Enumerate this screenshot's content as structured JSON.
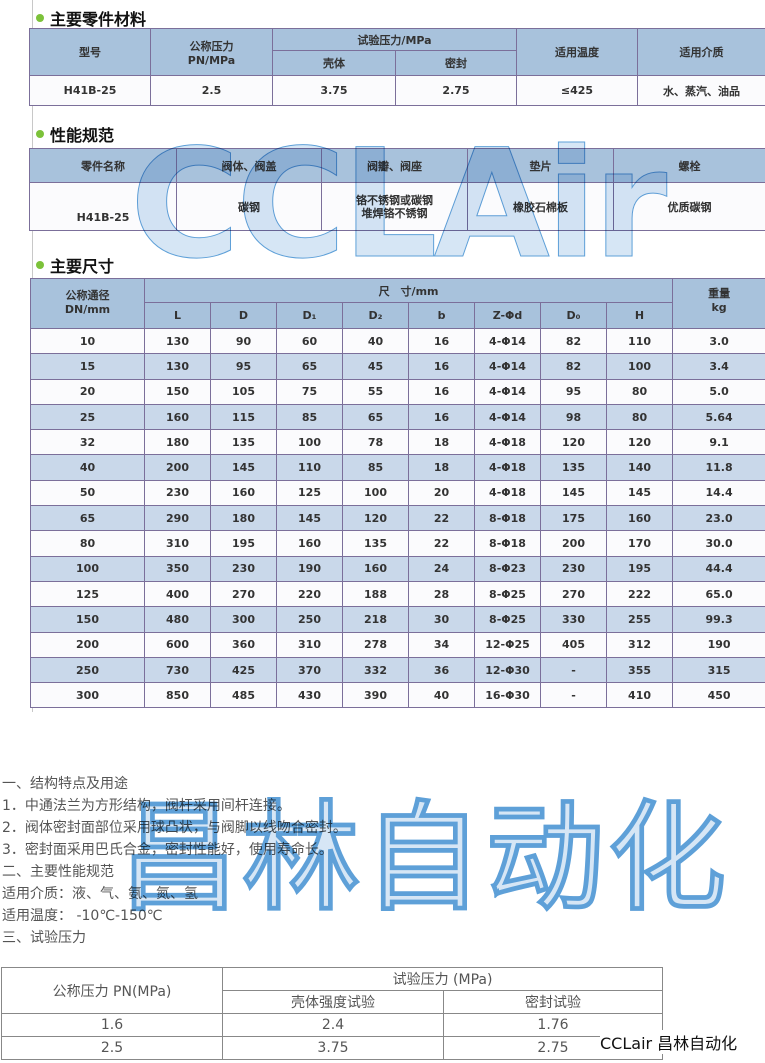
{
  "section1": {
    "title": "主要零件材料",
    "headers": {
      "model": "型号",
      "pn": "公称压力\nPN/MPa",
      "test": "试验压力/MPa",
      "shell": "壳体",
      "seal": "密封",
      "temp": "适用温度",
      "medium": "适用介质"
    },
    "row": [
      "H41B-25",
      "2.5",
      "3.75",
      "2.75",
      "≤425",
      "水、蒸汽、油品"
    ]
  },
  "section2": {
    "title": "性能规范",
    "headers": [
      "零件名称",
      "阀体、阀盖",
      "阀瓣、阀座",
      "垫片",
      "螺栓"
    ],
    "row": [
      "H41B-25",
      "碳钢",
      "铬不锈钢或碳钢\n堆焊铬不锈钢",
      "橡胶石棉板",
      "优质碳钢"
    ]
  },
  "section3": {
    "title": "主要尺寸",
    "dn_header": "公称通径\nDN/mm",
    "dim_header": "尺　寸/mm",
    "weight_header": "重量\nkg",
    "columns": [
      "L",
      "D",
      "D₁",
      "D₂",
      "b",
      "Z-Φd",
      "D₀",
      "H"
    ],
    "rows": [
      [
        "10",
        "130",
        "90",
        "60",
        "40",
        "16",
        "4-Φ14",
        "82",
        "110",
        "3.0"
      ],
      [
        "15",
        "130",
        "95",
        "65",
        "45",
        "16",
        "4-Φ14",
        "82",
        "100",
        "3.4"
      ],
      [
        "20",
        "150",
        "105",
        "75",
        "55",
        "16",
        "4-Φ14",
        "95",
        "80",
        "5.0"
      ],
      [
        "25",
        "160",
        "115",
        "85",
        "65",
        "16",
        "4-Φ14",
        "98",
        "80",
        "5.64"
      ],
      [
        "32",
        "180",
        "135",
        "100",
        "78",
        "18",
        "4-Φ18",
        "120",
        "120",
        "9.1"
      ],
      [
        "40",
        "200",
        "145",
        "110",
        "85",
        "18",
        "4-Φ18",
        "135",
        "140",
        "11.8"
      ],
      [
        "50",
        "230",
        "160",
        "125",
        "100",
        "20",
        "4-Φ18",
        "145",
        "145",
        "14.4"
      ],
      [
        "65",
        "290",
        "180",
        "145",
        "120",
        "22",
        "8-Φ18",
        "175",
        "160",
        "23.0"
      ],
      [
        "80",
        "310",
        "195",
        "160",
        "135",
        "22",
        "8-Φ18",
        "200",
        "170",
        "30.0"
      ],
      [
        "100",
        "350",
        "230",
        "190",
        "160",
        "24",
        "8-Φ23",
        "230",
        "195",
        "44.4"
      ],
      [
        "125",
        "400",
        "270",
        "220",
        "188",
        "28",
        "8-Φ25",
        "270",
        "222",
        "65.0"
      ],
      [
        "150",
        "480",
        "300",
        "250",
        "218",
        "30",
        "8-Φ25",
        "330",
        "255",
        "99.3"
      ],
      [
        "200",
        "600",
        "360",
        "310",
        "278",
        "34",
        "12-Φ25",
        "405",
        "312",
        "190"
      ],
      [
        "250",
        "730",
        "425",
        "370",
        "332",
        "36",
        "12-Φ30",
        "-",
        "355",
        "315"
      ],
      [
        "300",
        "850",
        "485",
        "430",
        "390",
        "40",
        "16-Φ30",
        "-",
        "410",
        "450"
      ]
    ]
  },
  "description": [
    "一、结构特点及用途",
    "1．中通法兰为方形结构，阀杆采用间杆连接。",
    "2．阀体密封面部位采用球凸状，与阀脚以线吻合密封。",
    "3．密封面采用巴氏合金，密封性能好，使用寿命长。",
    "二、主要性能规范",
    "适用介质：液、气、氨、氮、氢",
    "适用温度： -10℃-150℃",
    "三、试验压力"
  ],
  "pressure_table": {
    "pn_header": "公称压力 PN(MPa)",
    "test_header": "试验压力 (MPa)",
    "shell_header": "壳体强度试验",
    "seal_header": "密封试验",
    "rows": [
      [
        "1.6",
        "2.4",
        "1.76"
      ],
      [
        "2.5",
        "3.75",
        "2.75"
      ]
    ]
  },
  "watermark": {
    "latin": "CCLAir",
    "cn": "昌林自动化"
  },
  "brand": "CCLair 昌林自动化"
}
